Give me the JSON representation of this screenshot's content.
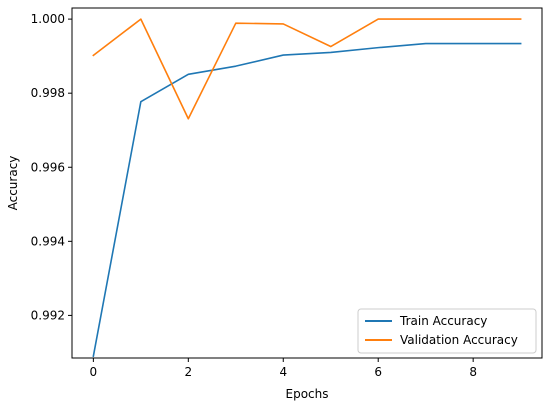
{
  "chart_data": {
    "type": "line",
    "title": "",
    "xlabel": "Epochs",
    "ylabel": "Accuracy",
    "x": [
      0,
      1,
      2,
      3,
      4,
      5,
      6,
      7,
      8,
      9
    ],
    "xlim": [
      -0.45,
      9.45
    ],
    "ylim": [
      0.99085,
      1.0003
    ],
    "xticks": [
      0,
      2,
      4,
      6,
      8
    ],
    "yticks": [
      0.992,
      0.994,
      0.996,
      0.998,
      1.0
    ],
    "xtick_labels": [
      "0",
      "2",
      "4",
      "6",
      "8"
    ],
    "ytick_labels": [
      "0.992",
      "0.994",
      "0.996",
      "0.998",
      "1.000"
    ],
    "grid": false,
    "legend": "lower-right",
    "series": [
      {
        "name": "Train Accuracy",
        "color": "#1f77b4",
        "values": [
          0.9909,
          0.99777,
          0.99851,
          0.99873,
          0.99903,
          0.9991,
          0.99923,
          0.99934,
          0.99934,
          0.99934
        ]
      },
      {
        "name": "Validation Accuracy",
        "color": "#ff7f0e",
        "values": [
          0.99902,
          1.0,
          0.99731,
          0.99989,
          0.99987,
          0.99926,
          1.0,
          1.0,
          1.0,
          1.0
        ]
      }
    ]
  }
}
